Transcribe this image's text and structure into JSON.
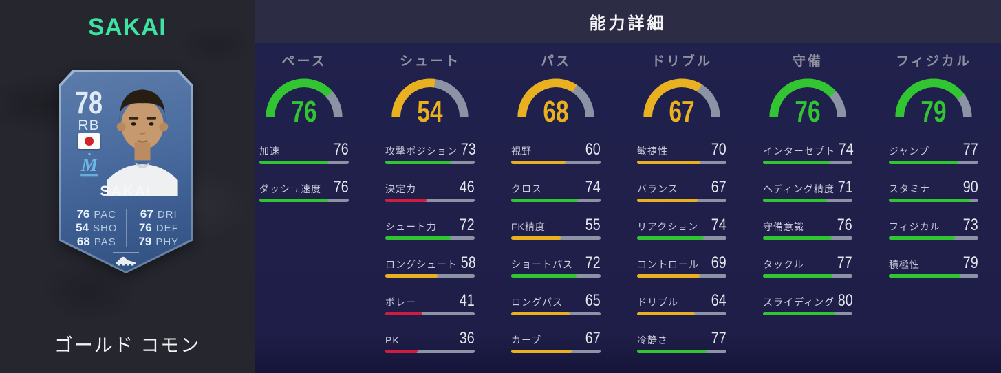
{
  "sidebar": {
    "player_title": "SAKAI",
    "card_type_label": "ゴールド コモン",
    "card": {
      "rating": "78",
      "position": "RB",
      "name": "SAKAI",
      "left_stats": [
        {
          "value": "76",
          "label": "PAC"
        },
        {
          "value": "54",
          "label": "SHO"
        },
        {
          "value": "68",
          "label": "PAS"
        }
      ],
      "right_stats": [
        {
          "value": "67",
          "label": "DRI"
        },
        {
          "value": "76",
          "label": "DEF"
        },
        {
          "value": "79",
          "label": "PHY"
        }
      ]
    }
  },
  "header": {
    "title": "能力詳細"
  },
  "panel": {
    "max_value": 99,
    "columns": [
      {
        "label": "ペース",
        "value": 76,
        "stats": [
          {
            "label": "加速",
            "value": 76
          },
          {
            "label": "ダッシュ速度",
            "value": 76
          }
        ]
      },
      {
        "label": "シュート",
        "value": 54,
        "stats": [
          {
            "label": "攻撃ポジション",
            "value": 73
          },
          {
            "label": "決定力",
            "value": 46
          },
          {
            "label": "シュート力",
            "value": 72
          },
          {
            "label": "ロングシュート",
            "value": 58
          },
          {
            "label": "ボレー",
            "value": 41
          },
          {
            "label": "PK",
            "value": 36
          }
        ]
      },
      {
        "label": "パス",
        "value": 68,
        "stats": [
          {
            "label": "視野",
            "value": 60
          },
          {
            "label": "クロス",
            "value": 74
          },
          {
            "label": "FK精度",
            "value": 55
          },
          {
            "label": "ショートパス",
            "value": 72
          },
          {
            "label": "ロングパス",
            "value": 65
          },
          {
            "label": "カーブ",
            "value": 67
          }
        ]
      },
      {
        "label": "ドリブル",
        "value": 67,
        "stats": [
          {
            "label": "敏捷性",
            "value": 70
          },
          {
            "label": "バランス",
            "value": 67
          },
          {
            "label": "リアクション",
            "value": 74
          },
          {
            "label": "コントロール",
            "value": 69
          },
          {
            "label": "ドリブル",
            "value": 64
          },
          {
            "label": "冷静さ",
            "value": 77
          }
        ]
      },
      {
        "label": "守備",
        "value": 76,
        "stats": [
          {
            "label": "インターセプト",
            "value": 74
          },
          {
            "label": "ヘディング精度",
            "value": 71
          },
          {
            "label": "守備意識",
            "value": 76
          },
          {
            "label": "タックル",
            "value": 77
          },
          {
            "label": "スライディング",
            "value": 80
          }
        ]
      },
      {
        "label": "フィジカル",
        "value": 79,
        "stats": [
          {
            "label": "ジャンプ",
            "value": 77
          },
          {
            "label": "スタミナ",
            "value": 90
          },
          {
            "label": "フィジカル",
            "value": 73
          },
          {
            "label": "積極性",
            "value": 79
          }
        ]
      }
    ]
  },
  "palette": {
    "high": "#32c532",
    "mid": "#e9b020",
    "low": "#d01c3e",
    "track": "#8c93a4",
    "accent_name": "#3fe3a1",
    "panel_bg": "#1f1f4a",
    "header_bg": "#2d2c45",
    "sidebar_bg": "#26262f",
    "card_blue": "#46689c"
  },
  "thresholds": {
    "high_min": 71,
    "mid_min": 50
  },
  "icons": {
    "flag": "japan-flag-icon",
    "crest": "club-crest-icon",
    "boot": "boot-icon"
  }
}
